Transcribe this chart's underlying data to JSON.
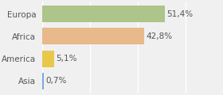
{
  "categories": [
    "Europa",
    "Africa",
    "America",
    "Asia"
  ],
  "values": [
    51.4,
    42.8,
    5.1,
    0.7
  ],
  "labels": [
    "51,4%",
    "42,8%",
    "5,1%",
    "0,7%"
  ],
  "bar_colors": [
    "#adc48a",
    "#e8b98a",
    "#e8c84a",
    "#7aaadc"
  ],
  "background_color": "#f0f0f0",
  "xlim": [
    0,
    75
  ],
  "bar_height": 0.75,
  "fontsize": 7.5,
  "label_fontsize": 7.5,
  "label_color": "#555555",
  "grid_color": "#ffffff",
  "figsize": [
    2.8,
    1.2
  ],
  "dpi": 100
}
